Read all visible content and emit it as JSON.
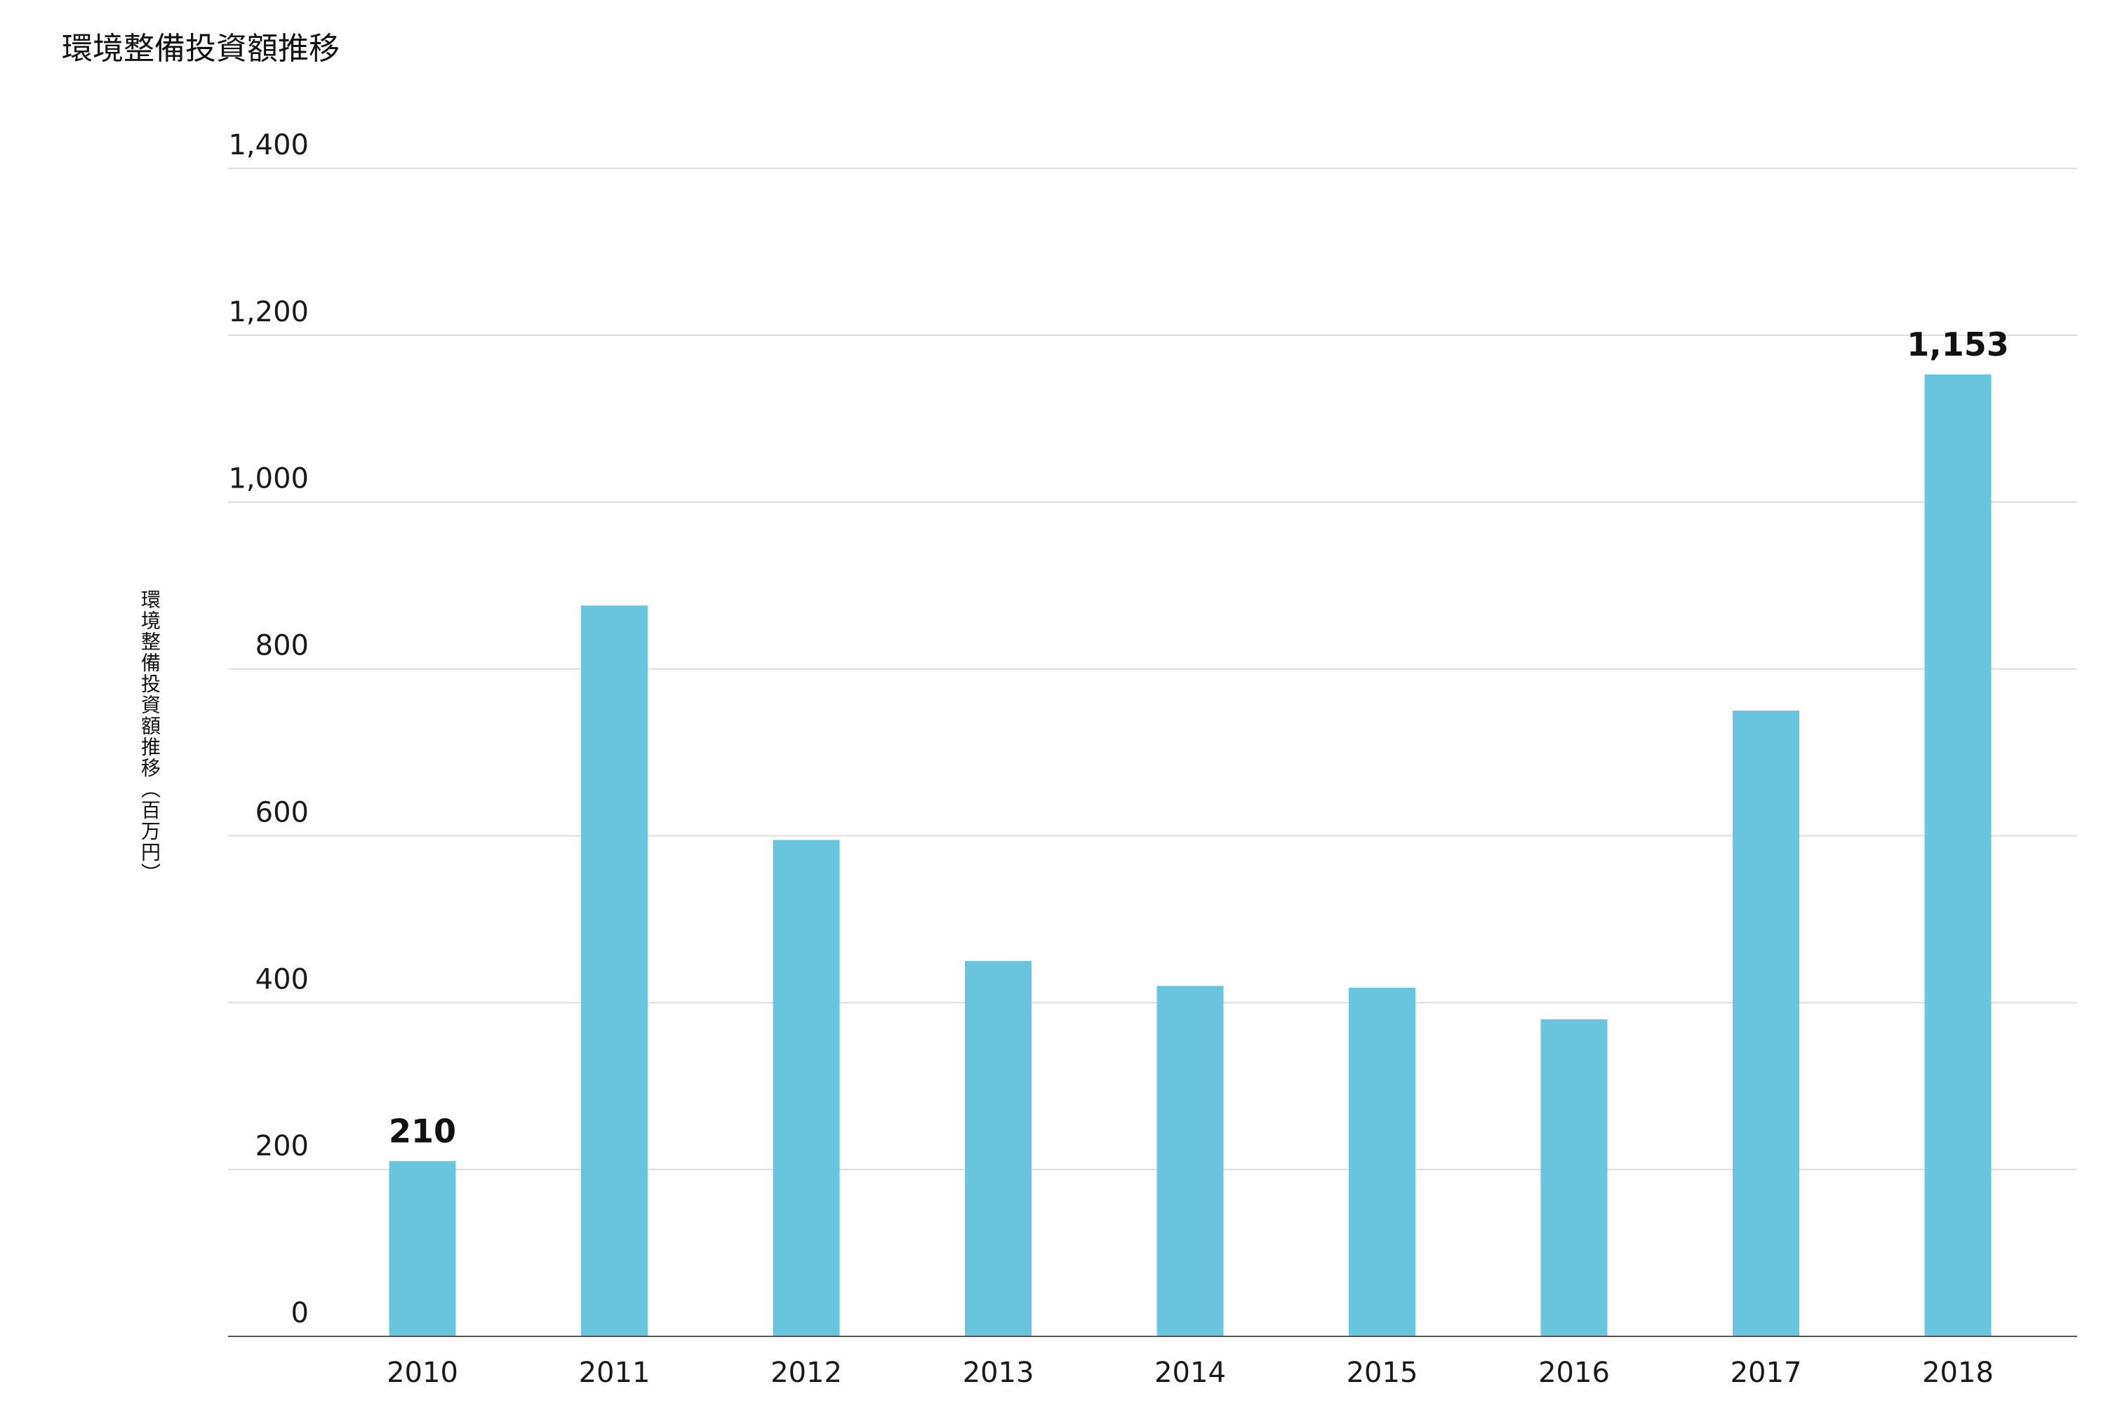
{
  "chart_data": {
    "type": "bar",
    "title": "環境整備投資額推移",
    "xlabel": "",
    "ylabel": "環境整備投資額推移（百万円）",
    "categories": [
      "2010",
      "2011",
      "2012",
      "2013",
      "2014",
      "2015",
      "2016",
      "2017",
      "2018"
    ],
    "values": [
      210,
      876,
      595,
      450,
      420,
      418,
      380,
      750,
      1153
    ],
    "data_labels": [
      {
        "index": 0,
        "text": "210"
      },
      {
        "index": 8,
        "text": "1,153"
      }
    ],
    "ylim": [
      0,
      1400
    ],
    "yticks": [
      {
        "value": 0,
        "label": "0"
      },
      {
        "value": 200,
        "label": "200"
      },
      {
        "value": 400,
        "label": "400"
      },
      {
        "value": 600,
        "label": "600"
      },
      {
        "value": 800,
        "label": "800"
      },
      {
        "value": 1000,
        "label": "1,000"
      },
      {
        "value": 1200,
        "label": "1,200"
      },
      {
        "value": 1400,
        "label": "1,400"
      }
    ],
    "grid": true,
    "legend": "none",
    "bar_color": "#68c5dd",
    "grid_color": "#dddddd",
    "axis_color": "#555555"
  }
}
